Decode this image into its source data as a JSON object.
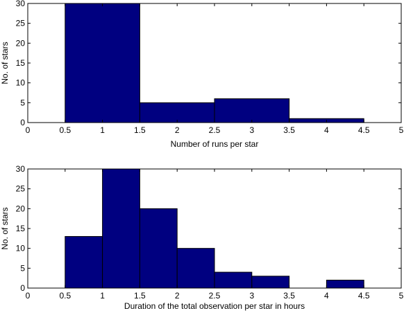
{
  "chart_data": [
    {
      "type": "bar",
      "bins": [
        {
          "from": 0.5,
          "to": 1.5,
          "count": 30
        },
        {
          "from": 1.5,
          "to": 2.5,
          "count": 5
        },
        {
          "from": 2.5,
          "to": 3.5,
          "count": 6
        },
        {
          "from": 3.5,
          "to": 4.5,
          "count": 1
        }
      ],
      "xlabel": "Number of runs per star",
      "ylabel": "No. of stars",
      "xlim": [
        0,
        5
      ],
      "ylim": [
        0,
        30
      ],
      "xticks": [
        "0",
        "0.5",
        "1",
        "1.5",
        "2",
        "2.5",
        "3",
        "3.5",
        "4",
        "4.5",
        "5"
      ],
      "yticks": [
        "0",
        "5",
        "10",
        "15",
        "20",
        "25",
        "30"
      ],
      "grid": false,
      "bar_color": "#000080",
      "edge_color": "#000000"
    },
    {
      "type": "bar",
      "bins": [
        {
          "from": 0.5,
          "to": 1.0,
          "count": 13
        },
        {
          "from": 1.0,
          "to": 1.5,
          "count": 30
        },
        {
          "from": 1.5,
          "to": 2.0,
          "count": 20
        },
        {
          "from": 2.0,
          "to": 2.5,
          "count": 10
        },
        {
          "from": 2.5,
          "to": 3.0,
          "count": 4
        },
        {
          "from": 3.0,
          "to": 3.5,
          "count": 3
        },
        {
          "from": 3.5,
          "to": 4.0,
          "count": 0
        },
        {
          "from": 4.0,
          "to": 4.5,
          "count": 2
        },
        {
          "from": 4.5,
          "to": 5.0,
          "count": 0
        }
      ],
      "xlabel": "Duration of the total observation per star in hours",
      "ylabel": "No. of stars",
      "xlim": [
        0,
        5
      ],
      "ylim": [
        0,
        30
      ],
      "xticks": [
        "0",
        "0.5",
        "1",
        "1.5",
        "2",
        "2.5",
        "3",
        "3.5",
        "4",
        "4.5",
        "5"
      ],
      "yticks": [
        "0",
        "5",
        "10",
        "15",
        "20",
        "25",
        "30"
      ],
      "grid": false,
      "bar_color": "#000080",
      "edge_color": "#000000"
    }
  ]
}
